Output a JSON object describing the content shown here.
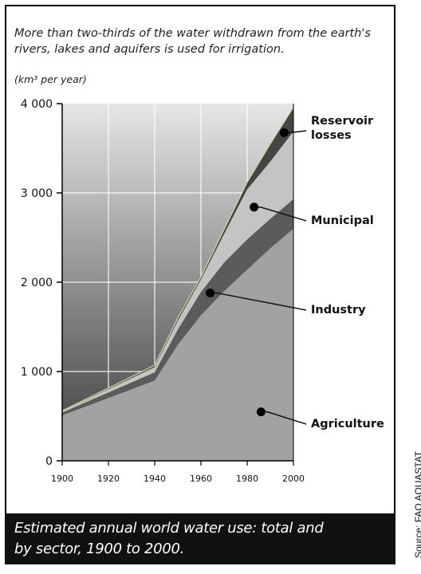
{
  "intro": "More than two-thirds of the water withdrawn from the earth's rivers, lakes and aquifers is used for irrigation.",
  "caption": {
    "line1": "Estimated annual world water use: total and",
    "line2": "by sector, 1900 to 2000."
  },
  "source": "Source: FAO AQUASTAT",
  "colors": {
    "agriculture": "#a2a2a2",
    "industry": "#5b5b5b",
    "municipal": "#c4c4c4",
    "reservoir": "#454545",
    "background_top": "#e6e6e6",
    "background_bottom": "#3a3a3a",
    "caption_band": "#111111"
  },
  "chart_data": {
    "type": "area",
    "stacked": true,
    "ylabel": "(km³ per year)",
    "x": [
      1900,
      1940,
      1950,
      1960,
      1970,
      1980,
      1990,
      2000
    ],
    "xticks": [
      1900,
      1920,
      1940,
      1960,
      1980,
      2000
    ],
    "xtick_labels": [
      "1900",
      "1920",
      "1940",
      "1960",
      "1980",
      "2000"
    ],
    "yticks": [
      0,
      1000,
      2000,
      3000,
      4000
    ],
    "ytick_labels": [
      "0",
      "1 000",
      "2 000",
      "3 000",
      "4 000"
    ],
    "xlim": [
      1900,
      2000
    ],
    "ylim": [
      0,
      4000
    ],
    "grid": true,
    "series": [
      {
        "name": "Agriculture",
        "values": [
          510,
          900,
          1300,
          1630,
          1900,
          2140,
          2380,
          2600
        ]
      },
      {
        "name": "Industry",
        "values": [
          30,
          90,
          170,
          260,
          320,
          340,
          330,
          330
        ]
      },
      {
        "name": "Municipal",
        "values": [
          15,
          60,
          100,
          140,
          320,
          560,
          640,
          760
        ]
      },
      {
        "name": "Reservoir losses",
        "values": [
          5,
          20,
          30,
          30,
          50,
          80,
          200,
          270
        ]
      }
    ],
    "legend_labels": [
      {
        "series": "Reservoir losses",
        "line1": "Reservoir",
        "line2": "losses"
      },
      {
        "series": "Municipal",
        "line1": "Municipal",
        "line2": ""
      },
      {
        "series": "Industry",
        "line1": "Industry",
        "line2": ""
      },
      {
        "series": "Agriculture",
        "line1": "Agriculture",
        "line2": ""
      }
    ],
    "legend_placement": "right, labels with leader lines"
  }
}
